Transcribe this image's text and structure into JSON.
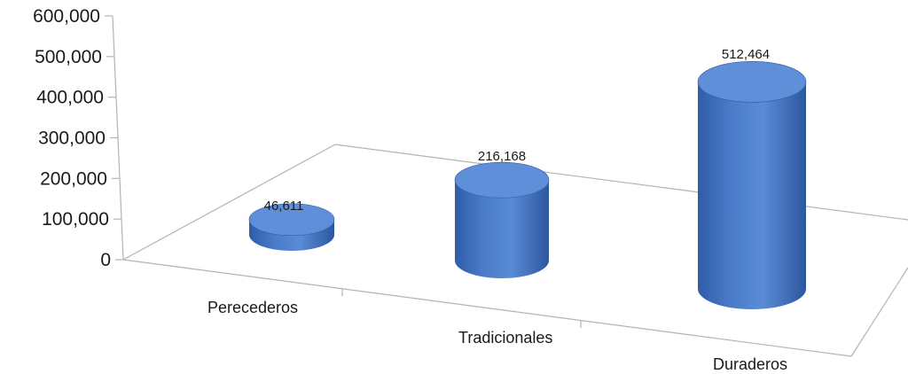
{
  "chart_data": {
    "type": "bar",
    "style": "3d-cylinder",
    "categories": [
      "Perecederos",
      "Tradicionales",
      "Duraderos"
    ],
    "values": [
      46611,
      216168,
      512464
    ],
    "value_labels": [
      "46,611",
      "216,168",
      "512,464"
    ],
    "y_ticks": [
      "0",
      "100,000",
      "200,000",
      "300,000",
      "400,000",
      "500,000",
      "600,000"
    ],
    "ylim": [
      0,
      600000
    ],
    "grid": false,
    "legend": "none",
    "colors": {
      "bar": "#4a7bc8",
      "bar_top": "#5e8fd8",
      "bar_dark": "#2f5da8",
      "axis": "#b3b3b3"
    }
  }
}
